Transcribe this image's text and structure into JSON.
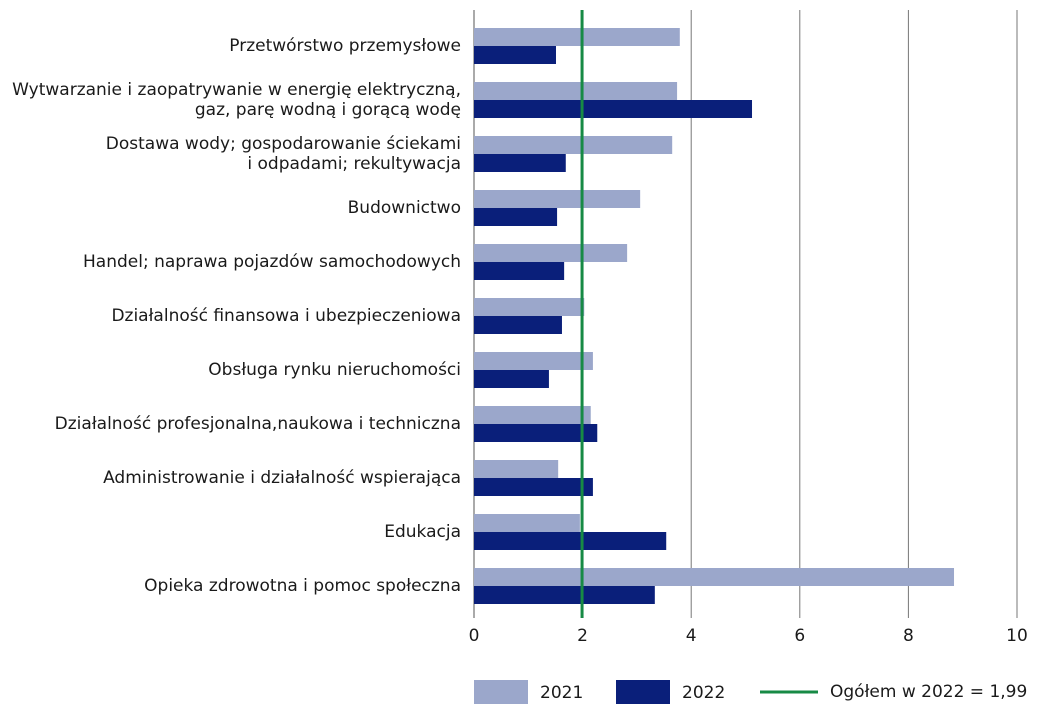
{
  "chart_data": {
    "type": "hbar",
    "categories": [
      [
        "Przetwórstwo przemysłowe"
      ],
      [
        "Wytwarzanie i zaopatrywanie w energię elektryczną,",
        "gaz, parę wodną i gorącą wodę"
      ],
      [
        "Dostawa wody; gospodarowanie ściekami",
        "i odpadami; rekultywacja"
      ],
      [
        "Budownictwo"
      ],
      [
        "Handel; naprawa pojazdów samochodowych"
      ],
      [
        "Działalność finansowa i ubezpieczeniowa"
      ],
      [
        "Obsługa rynku nieruchomości"
      ],
      [
        "Działalność profesjonalna,naukowa i techniczna"
      ],
      [
        "Administrowanie i działalność wspierająca"
      ],
      [
        "Edukacja"
      ],
      [
        "Opieka zdrowotna i pomoc społeczna"
      ]
    ],
    "series": [
      {
        "name": "2021",
        "color": "#9ba7cb",
        "values": [
          3.79,
          3.74,
          3.65,
          3.06,
          2.82,
          2.03,
          2.19,
          2.15,
          1.55,
          1.95,
          8.84
        ]
      },
      {
        "name": "2022",
        "color": "#0a1f7a",
        "values": [
          1.51,
          5.12,
          1.69,
          1.53,
          1.66,
          1.62,
          1.38,
          2.27,
          2.19,
          3.54,
          3.33
        ]
      }
    ],
    "reference_line": {
      "value": 1.99,
      "label": "Ogółem w 2022 = 1,99",
      "color": "#178a45"
    },
    "xlim": [
      0,
      10
    ],
    "xticks": [
      0,
      2,
      4,
      6,
      8,
      10
    ],
    "grid": true
  }
}
